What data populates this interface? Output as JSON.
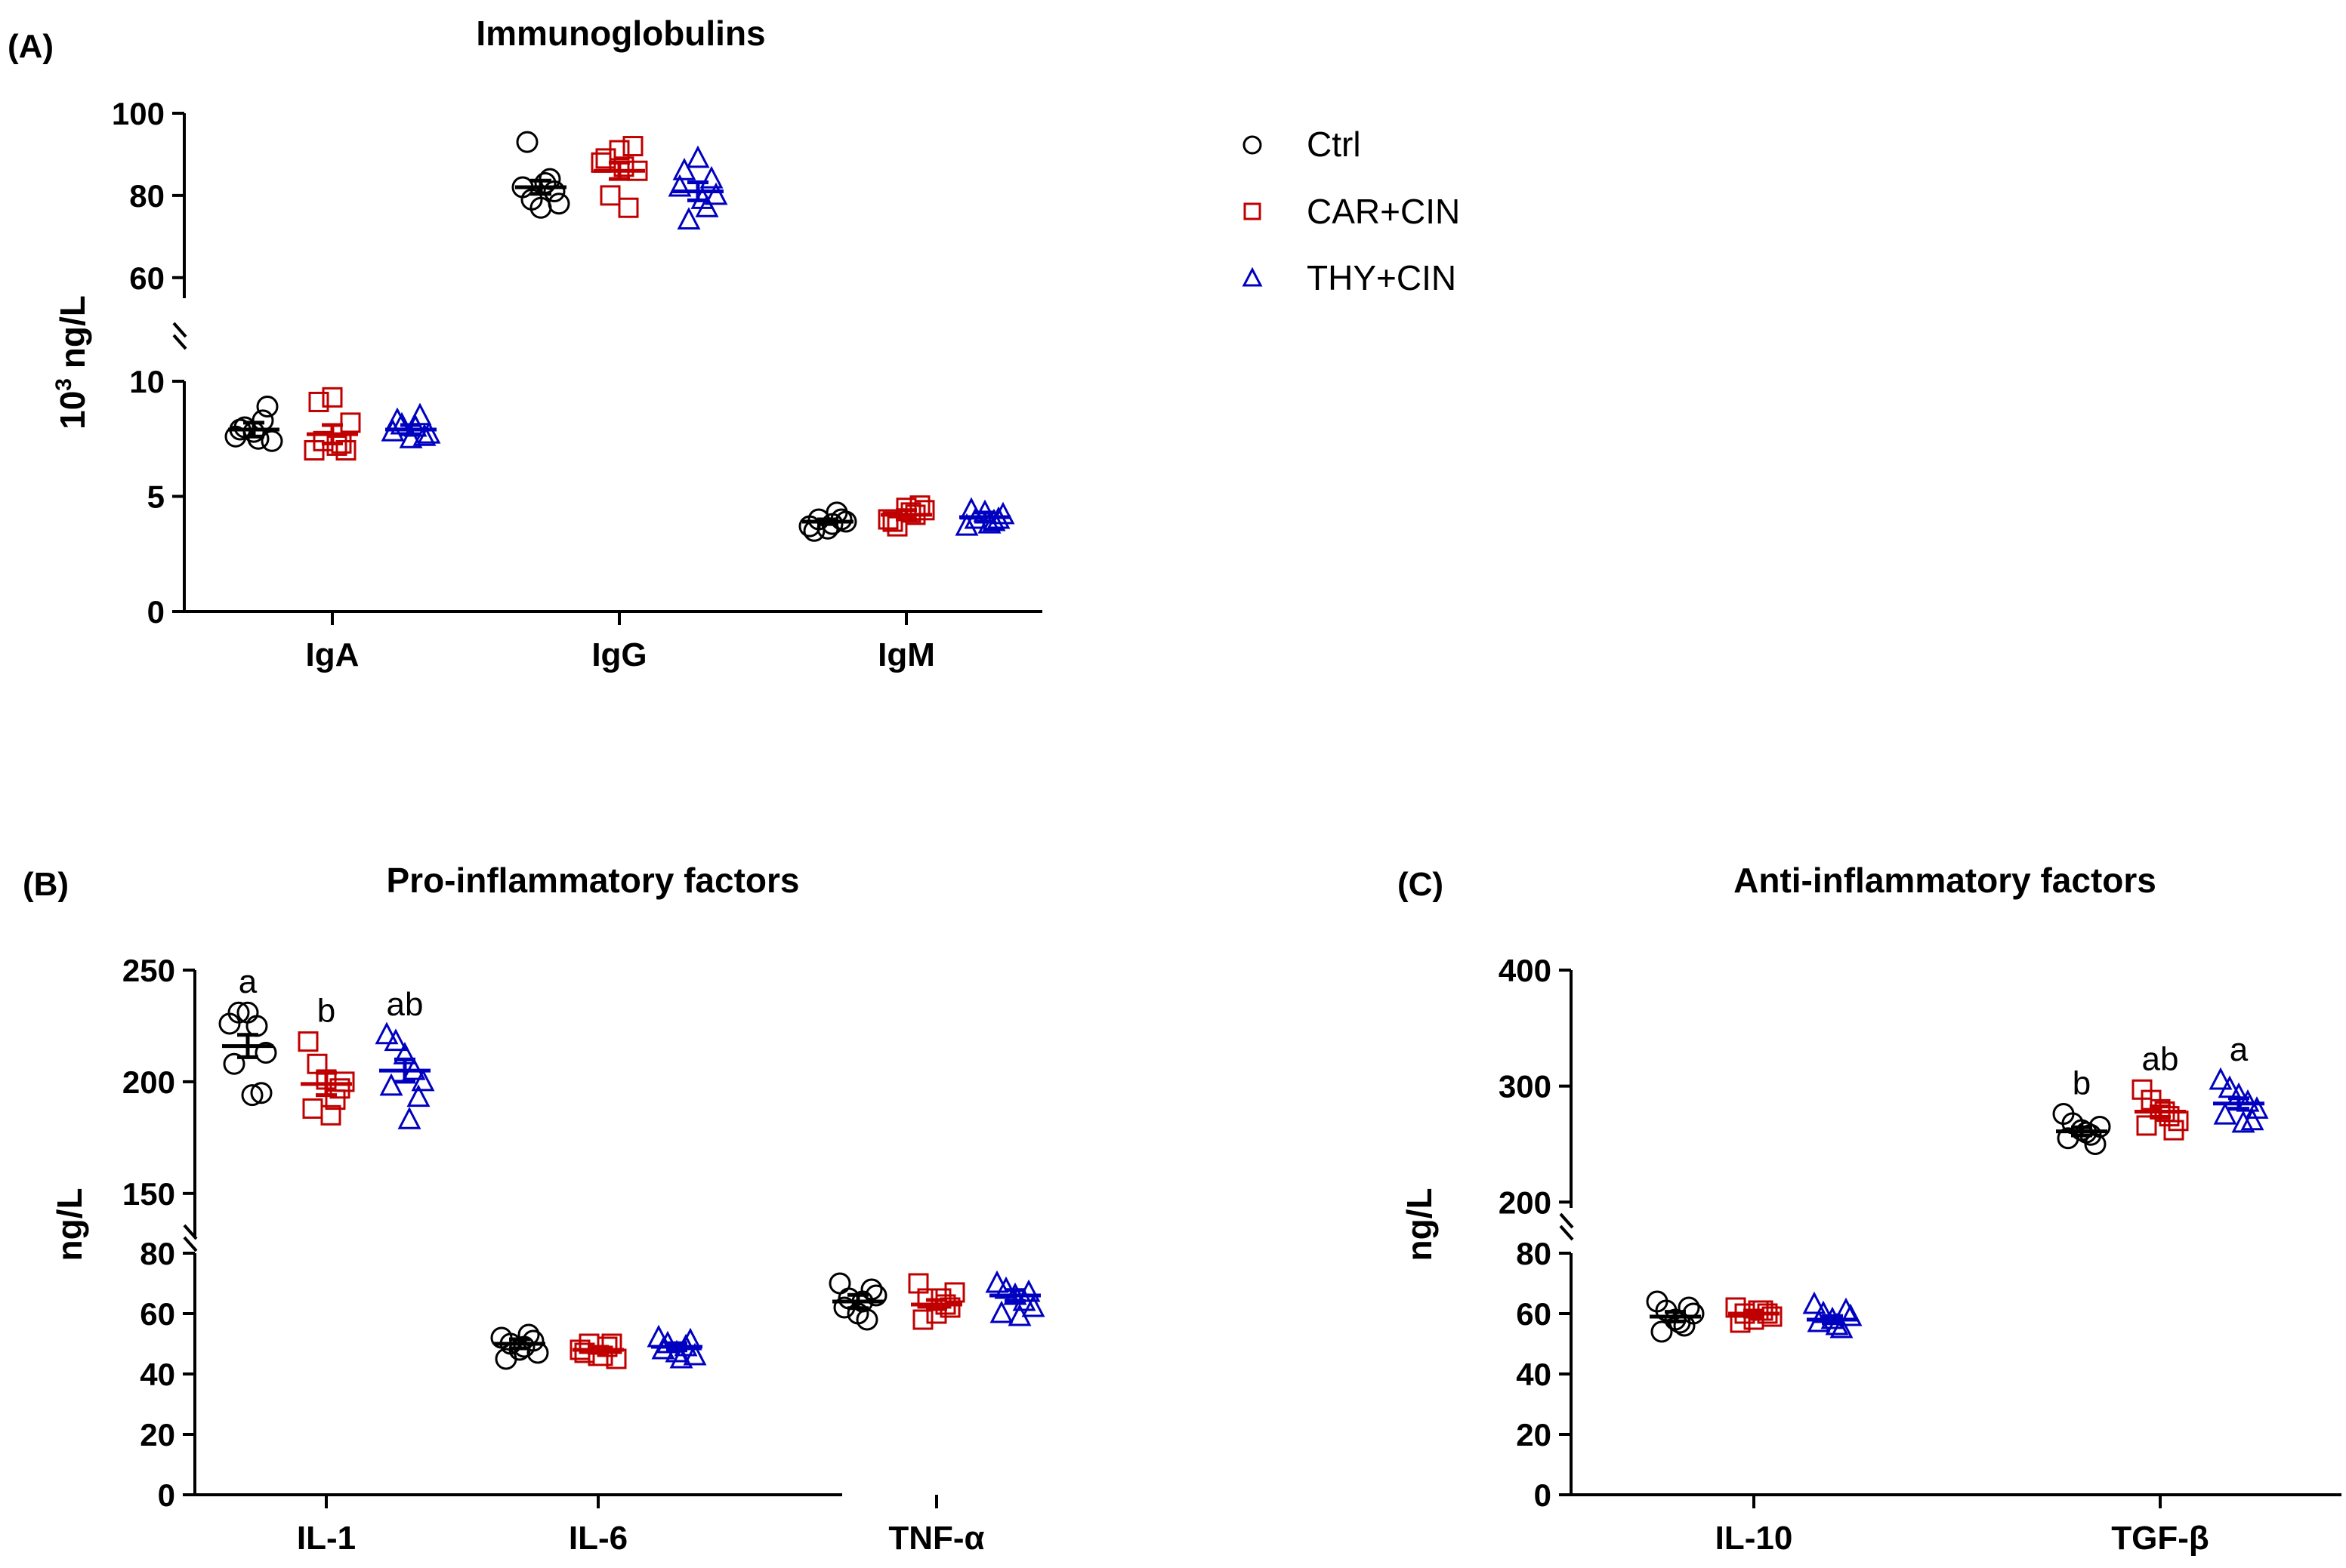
{
  "legend": [
    {
      "label": "Ctrl",
      "color": "#000000",
      "marker": "circle"
    },
    {
      "label": "CAR+CIN",
      "color": "#C00000",
      "marker": "square"
    },
    {
      "label": "THY+CIN",
      "color": "#0000C0",
      "marker": "triangle"
    }
  ],
  "chart_data": [
    {
      "panel_label": "(A)",
      "type": "scatter",
      "title": "Immunoglobulins",
      "ylabel": "10",
      "ylabel_sup": "3",
      "ylabel_tail": " ng/L",
      "categories": [
        "IgA",
        "IgG",
        "IgM"
      ],
      "axis_break": true,
      "y_lower": {
        "range": [
          0,
          10
        ],
        "ticks": [
          "0",
          "5",
          "10"
        ],
        "tick_values": [
          0,
          5,
          10
        ]
      },
      "y_upper": {
        "range": [
          55,
          100
        ],
        "ticks": [
          "60",
          "80",
          "100"
        ],
        "tick_values": [
          60,
          80,
          100
        ]
      },
      "series": [
        {
          "name": "Ctrl",
          "means": [
            7.9,
            82,
            3.9
          ],
          "sem": [
            0.3,
            1.6,
            0.1
          ],
          "points": [
            [
              7.6,
              8.0,
              7.8,
              8.3,
              7.4,
              7.9,
              8.9,
              7.5
            ],
            [
              82,
              79,
              77,
              84,
              78,
              93,
              81,
              83
            ],
            [
              3.7,
              4.0,
              3.6,
              4.3,
              3.9,
              3.5,
              4.0,
              3.8
            ]
          ]
        },
        {
          "name": "CAR+CIN",
          "means": [
            7.7,
            86,
            4.2
          ],
          "sem": [
            0.4,
            2.0,
            0.2
          ],
          "points": [
            [
              7.0,
              7.4,
              9.3,
              7.3,
              8.2,
              9.1,
              7.0,
              7.2
            ],
            [
              88,
              80,
              91,
              77,
              86,
              89,
              92,
              87
            ],
            [
              4.0,
              3.7,
              4.5,
              4.2,
              4.4,
              3.9,
              4.6,
              4.3
            ]
          ]
        },
        {
          "name": "THY+CIN",
          "means": [
            7.9,
            81,
            4.1
          ],
          "sem": [
            0.2,
            2.2,
            0.2
          ],
          "points": [
            [
              7.8,
              8.1,
              7.5,
              8.5,
              7.7,
              8.3,
              7.6,
              8.0
            ],
            [
              82,
              74,
              89,
              77,
              80,
              86,
              84,
              79
            ],
            [
              3.7,
              4.0,
              4.3,
              3.9,
              4.2,
              4.4,
              4.0,
              3.8
            ]
          ]
        }
      ],
      "annotations": []
    },
    {
      "panel_label": "(B)",
      "type": "scatter",
      "title": "Pro-inflammatory factors",
      "ylabel": "ng/L",
      "categories": [
        "IL-1",
        "IL-6",
        "TNF-α"
      ],
      "axis_break": true,
      "y_lower": {
        "range": [
          0,
          80
        ],
        "ticks": [
          "0",
          "20",
          "40",
          "60",
          "80"
        ],
        "tick_values": [
          0,
          20,
          40,
          60,
          80
        ]
      },
      "y_upper": {
        "range": [
          130,
          250
        ],
        "ticks": [
          "150",
          "200",
          "250"
        ],
        "tick_values": [
          150,
          200,
          250
        ]
      },
      "series": [
        {
          "name": "Ctrl",
          "means": [
            216,
            50,
            64
          ],
          "sem": [
            5,
            1.5,
            2.2
          ],
          "points": [
            [
              226,
              231,
              231,
              225,
              213,
              208,
              195,
              194
            ],
            [
              52,
              50,
              48,
              53,
              47,
              45,
              51,
              49
            ],
            [
              70,
              65,
              60,
              58,
              66,
              62,
              68,
              64
            ]
          ]
        },
        {
          "name": "CAR+CIN",
          "means": [
            199,
            48,
            63
          ],
          "sem": [
            5,
            1.0,
            1.5
          ],
          "points": [
            [
              218,
              208,
              201,
              192,
              200,
              188,
              197,
              185
            ],
            [
              48,
              50,
              46,
              49,
              45,
              47,
              50,
              46
            ],
            [
              70,
              65,
              60,
              63,
              67,
              58,
              62,
              65
            ]
          ]
        },
        {
          "name": "THY+CIN",
          "means": [
            205,
            49,
            66
          ],
          "sem": [
            5,
            1.2,
            1.8
          ],
          "points": [
            [
              221,
              218,
              212,
              205,
              200,
              198,
              193,
              183
            ],
            [
              52,
              50,
              47,
              49,
              46,
              48,
              51,
              45
            ],
            [
              70,
              68,
              66,
              64,
              62,
              60,
              67,
              59
            ]
          ]
        }
      ],
      "annotations": [
        [
          "a",
          "b",
          "ab"
        ],
        [],
        []
      ]
    },
    {
      "panel_label": "(C)",
      "type": "scatter",
      "title": "Anti-inflammatory factors",
      "ylabel": "ng/L",
      "categories": [
        "IL-10",
        "TGF-β"
      ],
      "axis_break": true,
      "y_lower": {
        "range": [
          0,
          80
        ],
        "ticks": [
          "0",
          "20",
          "40",
          "60",
          "80"
        ],
        "tick_values": [
          0,
          20,
          40,
          60,
          80
        ]
      },
      "y_upper": {
        "range": [
          195,
          400
        ],
        "ticks": [
          "200",
          "300",
          "400"
        ],
        "tick_values": [
          200,
          300,
          400
        ]
      },
      "series": [
        {
          "name": "Ctrl",
          "means": [
            59,
            261
          ],
          "sem": [
            1.6,
            3.5
          ],
          "points": [
            [
              64,
              61,
              58,
              56,
              60,
              54,
              62,
              57
            ],
            [
              276,
              268,
              262,
              258,
              265,
              255,
              250,
              260
            ]
          ]
        },
        {
          "name": "CAR+CIN",
          "means": [
            60,
            278
          ],
          "sem": [
            1.0,
            4.5
          ],
          "points": [
            [
              62,
              60,
              58,
              61,
              59,
              57,
              60,
              61
            ],
            [
              297,
              288,
              280,
              274,
              270,
              266,
              262,
              278
            ]
          ]
        },
        {
          "name": "THY+CIN",
          "means": [
            58,
            285
          ],
          "sem": [
            1.2,
            4.5
          ],
          "points": [
            [
              63,
              60,
              58,
              55,
              59,
              57,
              61,
              56
            ],
            [
              305,
              298,
              292,
              286,
              280,
              275,
              270,
              268
            ]
          ]
        }
      ],
      "annotations": [
        [],
        [
          "b",
          "ab",
          "a"
        ]
      ]
    }
  ]
}
